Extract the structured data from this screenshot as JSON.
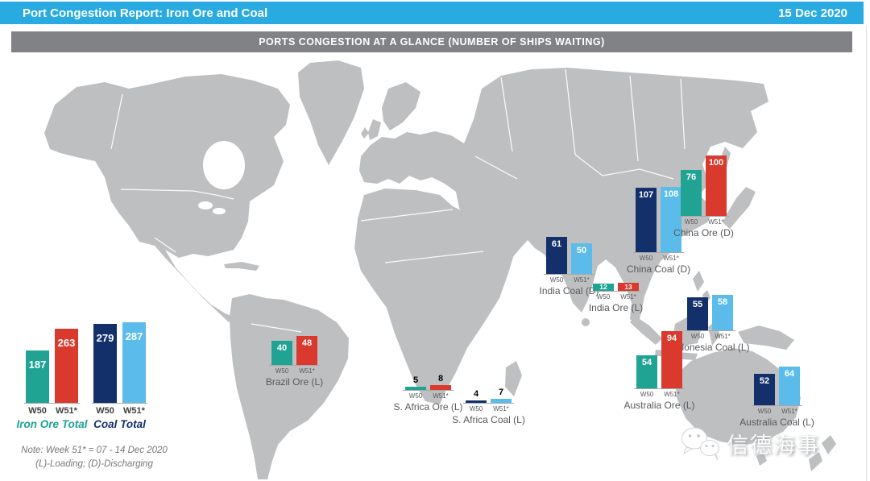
{
  "header": {
    "title": "Port Congestion Report: Iron Ore and Coal",
    "date": "15 Dec 2020"
  },
  "banner": {
    "title": "PORTS CONGESTION AT A GLANCE (NUMBER OF SHIPS WAITING)"
  },
  "colors": {
    "topbar": "#29ABE2",
    "banner_bg": "#808285",
    "land": "#BDBFC1",
    "ore_w50": "#21A394",
    "ore_w51": "#D93A2D",
    "coal_w50": "#13306B",
    "coal_w51": "#5BBCEB",
    "label_gray": "#58595B"
  },
  "chart_data": {
    "type": "bar",
    "title": "PORTS CONGESTION AT A GLANCE (NUMBER OF SHIPS WAITING)",
    "weeks": [
      "W50",
      "W51*"
    ],
    "totals": [
      {
        "id": "iron_ore_total",
        "label": "Iron Ore Total",
        "series": "ore",
        "values": [
          187,
          263
        ]
      },
      {
        "id": "coal_total",
        "label": "Coal Total",
        "series": "coal",
        "values": [
          279,
          287
        ]
      }
    ],
    "ports": [
      {
        "id": "brazil_ore",
        "label": "Brazil Ore (L)",
        "series": "ore",
        "values": [
          40,
          48
        ],
        "value_label_pos": "inside"
      },
      {
        "id": "s_africa_ore",
        "label": "S. Africa Ore (L)",
        "series": "ore",
        "values": [
          5,
          8
        ],
        "value_label_pos": "above"
      },
      {
        "id": "s_africa_coal",
        "label": "S. Africa Coal (L)",
        "series": "coal",
        "values": [
          4,
          7
        ],
        "value_label_pos": "above"
      },
      {
        "id": "india_coal",
        "label": "India Coal (D)",
        "series": "coal",
        "values": [
          61,
          50
        ],
        "value_label_pos": "inside"
      },
      {
        "id": "india_ore",
        "label": "India Ore (L)",
        "series": "ore",
        "values": [
          12,
          13
        ],
        "value_label_pos": "inside"
      },
      {
        "id": "china_coal",
        "label": "China Coal (D)",
        "series": "coal",
        "values": [
          107,
          108
        ],
        "value_label_pos": "inside"
      },
      {
        "id": "china_ore",
        "label": "China Ore (D)",
        "series": "ore",
        "values": [
          76,
          100
        ],
        "value_label_pos": "inside"
      },
      {
        "id": "indonesia_coal",
        "label": "Indonesia Coal (L)",
        "series": "coal",
        "values": [
          55,
          58
        ],
        "value_label_pos": "inside"
      },
      {
        "id": "australia_ore",
        "label": "Australia Ore (L)",
        "series": "ore",
        "values": [
          54,
          94
        ],
        "value_label_pos": "inside"
      },
      {
        "id": "australia_coal",
        "label": "Australia Coal (L)",
        "series": "coal",
        "values": [
          52,
          64
        ],
        "value_label_pos": "inside"
      }
    ],
    "notes": {
      "line1": "Note: Week 51* = 07 - 14 Dec 2020",
      "line2": "(L)-Loading; (D)-Discharging"
    }
  },
  "watermark": {
    "text": "信德海事"
  }
}
